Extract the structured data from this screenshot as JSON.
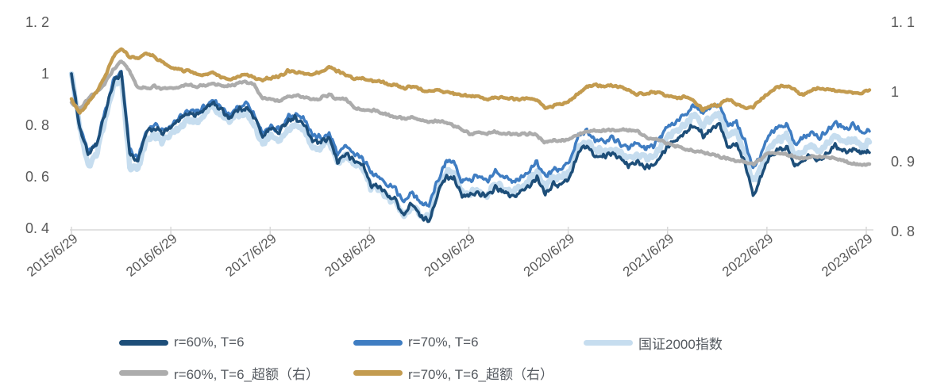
{
  "chart_data": {
    "type": "line",
    "title": "",
    "grid": false,
    "background": "#ffffff",
    "axis_text_color": "#595959",
    "axis_line_color": "#d8d8d8",
    "legend_position": "bottom",
    "x_tick_labels": [
      "2015/6/29",
      "2016/6/29",
      "2017/6/29",
      "2018/6/29",
      "2019/6/29",
      "2020/6/29",
      "2021/6/29",
      "2022/6/29",
      "2023/6/29"
    ],
    "left_axis": {
      "tick_labels": [
        "1. 2",
        "1",
        "0. 8",
        "0. 6",
        "0. 4"
      ],
      "tick_values": [
        1.2,
        1.0,
        0.8,
        0.6,
        0.4
      ],
      "range": [
        0.4,
        1.2
      ]
    },
    "right_axis": {
      "tick_labels": [
        "1. 1",
        "1",
        "0. 9",
        "0. 8"
      ],
      "tick_values": [
        1.1,
        1.0,
        0.9,
        0.8
      ],
      "range": [
        0.8,
        1.1
      ]
    },
    "x_start": "2015/6/29",
    "x_end": "2023/6/29",
    "sampling": "monthly",
    "series": [
      {
        "name": "r=60%, T=6",
        "axis": "left",
        "color": "#1d4e79",
        "width": 3.5,
        "noise": 0.013,
        "values": [
          1.0,
          0.79,
          0.69,
          0.72,
          0.84,
          0.96,
          1.01,
          0.69,
          0.66,
          0.77,
          0.79,
          0.77,
          0.79,
          0.82,
          0.85,
          0.84,
          0.86,
          0.89,
          0.86,
          0.83,
          0.86,
          0.87,
          0.83,
          0.76,
          0.79,
          0.77,
          0.82,
          0.83,
          0.8,
          0.74,
          0.73,
          0.75,
          0.66,
          0.69,
          0.66,
          0.65,
          0.57,
          0.56,
          0.53,
          0.51,
          0.45,
          0.5,
          0.44,
          0.43,
          0.53,
          0.6,
          0.6,
          0.52,
          0.53,
          0.54,
          0.52,
          0.56,
          0.54,
          0.52,
          0.54,
          0.56,
          0.6,
          0.54,
          0.57,
          0.57,
          0.6,
          0.7,
          0.72,
          0.68,
          0.68,
          0.69,
          0.67,
          0.64,
          0.66,
          0.64,
          0.65,
          0.69,
          0.73,
          0.75,
          0.78,
          0.8,
          0.76,
          0.79,
          0.8,
          0.72,
          0.73,
          0.66,
          0.53,
          0.6,
          0.68,
          0.7,
          0.72,
          0.64,
          0.67,
          0.69,
          0.66,
          0.7,
          0.72,
          0.7,
          0.71,
          0.69,
          0.7
        ]
      },
      {
        "name": "r=70%, T=6",
        "axis": "left",
        "color": "#3f7dc2",
        "width": 3.5,
        "noise": 0.013,
        "values": [
          1.0,
          0.8,
          0.7,
          0.73,
          0.85,
          0.97,
          1.02,
          0.7,
          0.67,
          0.78,
          0.8,
          0.78,
          0.8,
          0.83,
          0.86,
          0.85,
          0.87,
          0.9,
          0.87,
          0.84,
          0.87,
          0.88,
          0.84,
          0.77,
          0.8,
          0.78,
          0.83,
          0.84,
          0.82,
          0.76,
          0.75,
          0.77,
          0.69,
          0.72,
          0.69,
          0.68,
          0.61,
          0.6,
          0.57,
          0.55,
          0.5,
          0.54,
          0.5,
          0.49,
          0.58,
          0.66,
          0.66,
          0.58,
          0.59,
          0.6,
          0.58,
          0.62,
          0.6,
          0.58,
          0.6,
          0.62,
          0.66,
          0.6,
          0.63,
          0.63,
          0.66,
          0.76,
          0.78,
          0.74,
          0.74,
          0.75,
          0.73,
          0.71,
          0.73,
          0.71,
          0.72,
          0.76,
          0.8,
          0.82,
          0.85,
          0.88,
          0.84,
          0.87,
          0.88,
          0.8,
          0.81,
          0.74,
          0.63,
          0.69,
          0.77,
          0.79,
          0.81,
          0.73,
          0.75,
          0.77,
          0.75,
          0.79,
          0.81,
          0.79,
          0.8,
          0.78,
          0.78
        ]
      },
      {
        "name": "国证2000指数",
        "axis": "left",
        "color": "#c6ddef",
        "width": 6.5,
        "noise": 0.016,
        "values": [
          1.0,
          0.79,
          0.64,
          0.68,
          0.82,
          0.94,
          0.99,
          0.64,
          0.62,
          0.74,
          0.76,
          0.74,
          0.76,
          0.79,
          0.82,
          0.81,
          0.84,
          0.88,
          0.84,
          0.81,
          0.84,
          0.85,
          0.8,
          0.73,
          0.76,
          0.74,
          0.79,
          0.8,
          0.78,
          0.72,
          0.71,
          0.73,
          0.65,
          0.68,
          0.65,
          0.64,
          0.56,
          0.55,
          0.52,
          0.5,
          0.45,
          0.49,
          0.45,
          0.44,
          0.54,
          0.62,
          0.62,
          0.54,
          0.54,
          0.55,
          0.53,
          0.57,
          0.56,
          0.54,
          0.56,
          0.58,
          0.62,
          0.56,
          0.6,
          0.6,
          0.62,
          0.72,
          0.74,
          0.7,
          0.7,
          0.71,
          0.69,
          0.67,
          0.68,
          0.67,
          0.68,
          0.72,
          0.76,
          0.78,
          0.81,
          0.84,
          0.8,
          0.83,
          0.84,
          0.76,
          0.77,
          0.7,
          0.58,
          0.64,
          0.72,
          0.74,
          0.76,
          0.68,
          0.7,
          0.72,
          0.7,
          0.74,
          0.76,
          0.74,
          0.74,
          0.72,
          0.73
        ]
      },
      {
        "name": "r=60%, T=6_超额（右）",
        "axis": "right",
        "color": "#acacac",
        "width": 4.5,
        "noise": 0.0022,
        "values": [
          0.985,
          0.975,
          0.99,
          1.0,
          1.012,
          1.032,
          1.045,
          1.03,
          1.006,
          1.006,
          1.008,
          1.005,
          1.005,
          1.008,
          1.01,
          1.008,
          1.01,
          1.012,
          1.008,
          1.008,
          1.012,
          1.015,
          1.01,
          0.99,
          0.99,
          0.986,
          0.993,
          0.995,
          0.993,
          0.99,
          0.991,
          0.996,
          0.99,
          0.99,
          0.976,
          0.975,
          0.974,
          0.972,
          0.967,
          0.965,
          0.962,
          0.964,
          0.96,
          0.956,
          0.958,
          0.956,
          0.952,
          0.945,
          0.94,
          0.942,
          0.94,
          0.943,
          0.941,
          0.939,
          0.94,
          0.94,
          0.938,
          0.928,
          0.93,
          0.931,
          0.932,
          0.939,
          0.943,
          0.944,
          0.944,
          0.945,
          0.946,
          0.946,
          0.944,
          0.936,
          0.932,
          0.93,
          0.925,
          0.921,
          0.917,
          0.915,
          0.913,
          0.91,
          0.907,
          0.905,
          0.902,
          0.9,
          0.896,
          0.904,
          0.913,
          0.912,
          0.911,
          0.907,
          0.905,
          0.907,
          0.907,
          0.905,
          0.904,
          0.9,
          0.897,
          0.895,
          0.897
        ]
      },
      {
        "name": "r=70%, T=6_超额（右）",
        "axis": "right",
        "color": "#c39b4f",
        "width": 4.5,
        "noise": 0.0022,
        "values": [
          0.99,
          0.97,
          0.985,
          1.0,
          1.02,
          1.05,
          1.062,
          1.05,
          1.048,
          1.056,
          1.05,
          1.042,
          1.035,
          1.032,
          1.03,
          1.026,
          1.025,
          1.028,
          1.022,
          1.018,
          1.022,
          1.026,
          1.02,
          1.018,
          1.02,
          1.022,
          1.03,
          1.028,
          1.026,
          1.025,
          1.028,
          1.036,
          1.03,
          1.025,
          1.018,
          1.02,
          1.017,
          1.015,
          1.012,
          1.01,
          1.006,
          1.008,
          1.004,
          1.0,
          1.003,
          1.0,
          0.998,
          0.995,
          0.994,
          0.992,
          0.99,
          0.992,
          0.991,
          0.99,
          0.99,
          0.992,
          0.988,
          0.977,
          0.98,
          0.983,
          0.988,
          0.998,
          1.008,
          1.01,
          1.009,
          1.009,
          1.008,
          1.003,
          0.996,
          0.998,
          1.0,
          0.997,
          0.994,
          0.992,
          0.994,
          0.985,
          0.974,
          0.98,
          0.982,
          0.99,
          0.983,
          0.977,
          0.979,
          0.99,
          1.0,
          1.008,
          1.009,
          1.003,
          0.996,
          1.002,
          1.005,
          1.004,
          1.003,
          1.001,
          1.0,
          0.999,
          1.003
        ]
      }
    ],
    "legend_rows": [
      [
        0,
        1,
        2
      ],
      [
        3,
        4
      ]
    ]
  }
}
